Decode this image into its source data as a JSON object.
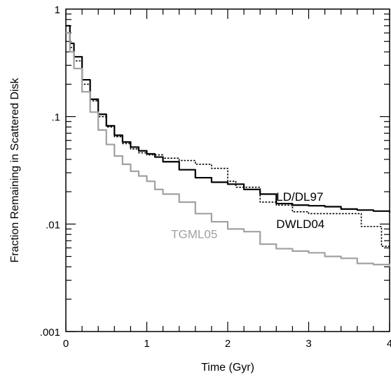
{
  "chart_data": {
    "type": "line",
    "title": "",
    "xlabel": "Time (Gyr)",
    "ylabel": "Fraction Remaining in Scattered Disk",
    "xlim": [
      0,
      4
    ],
    "ylim": [
      0.001,
      1
    ],
    "y_scale": "log",
    "grid": false,
    "x_ticks": [
      {
        "value": 0,
        "label": "0"
      },
      {
        "value": 1,
        "label": "1"
      },
      {
        "value": 2,
        "label": "2"
      },
      {
        "value": 3,
        "label": "3"
      },
      {
        "value": 4,
        "label": "4"
      }
    ],
    "y_ticks": [
      {
        "value": 1,
        "label": "1"
      },
      {
        "value": 0.1,
        "label": ".1"
      },
      {
        "value": 0.01,
        "label": ".01"
      },
      {
        "value": 0.001,
        "label": ".001"
      }
    ],
    "series": [
      {
        "name": "LD/DL97",
        "color": "#000000",
        "style": "solid",
        "x": [
          0,
          0.05,
          0.1,
          0.2,
          0.3,
          0.4,
          0.5,
          0.6,
          0.7,
          0.8,
          0.9,
          1.0,
          1.1,
          1.2,
          1.4,
          1.6,
          1.8,
          2.0,
          2.2,
          2.4,
          2.6,
          2.8,
          3.0,
          3.2,
          3.4,
          3.6,
          3.8,
          4.0
        ],
        "y": [
          0.7,
          0.48,
          0.36,
          0.22,
          0.145,
          0.105,
          0.082,
          0.067,
          0.058,
          0.052,
          0.048,
          0.045,
          0.042,
          0.038,
          0.032,
          0.027,
          0.0245,
          0.0235,
          0.021,
          0.019,
          0.0155,
          0.015,
          0.0148,
          0.0145,
          0.0138,
          0.0135,
          0.0132,
          0.0128
        ]
      },
      {
        "name": "DWLD04",
        "color": "#000000",
        "style": "dotted",
        "x": [
          0,
          0.05,
          0.1,
          0.2,
          0.3,
          0.4,
          0.5,
          0.6,
          0.7,
          0.8,
          0.9,
          1.0,
          1.2,
          1.4,
          1.6,
          1.8,
          2.0,
          2.1,
          2.2,
          2.4,
          2.6,
          2.8,
          3.0,
          3.2,
          3.4,
          3.6,
          3.65,
          3.8,
          3.9,
          4.0
        ],
        "y": [
          0.6,
          0.44,
          0.33,
          0.2,
          0.14,
          0.1,
          0.08,
          0.065,
          0.056,
          0.05,
          0.046,
          0.044,
          0.041,
          0.039,
          0.036,
          0.033,
          0.025,
          0.022,
          0.022,
          0.016,
          0.015,
          0.013,
          0.0125,
          0.0125,
          0.0125,
          0.0125,
          0.0095,
          0.0095,
          0.0062,
          0.0062
        ]
      },
      {
        "name": "TGML05",
        "color": "#a0a0a0",
        "style": "solid",
        "x": [
          0,
          0.05,
          0.1,
          0.2,
          0.3,
          0.4,
          0.5,
          0.6,
          0.7,
          0.8,
          0.9,
          1.0,
          1.1,
          1.2,
          1.4,
          1.6,
          1.8,
          2.0,
          2.2,
          2.4,
          2.6,
          2.8,
          3.0,
          3.2,
          3.4,
          3.6,
          3.8,
          4.0
        ],
        "y": [
          0.6,
          0.4,
          0.28,
          0.17,
          0.11,
          0.075,
          0.055,
          0.043,
          0.036,
          0.031,
          0.028,
          0.025,
          0.021,
          0.019,
          0.016,
          0.0125,
          0.0105,
          0.009,
          0.0085,
          0.0065,
          0.0059,
          0.0056,
          0.0054,
          0.005,
          0.0048,
          0.0043,
          0.0042,
          0.004
        ]
      }
    ],
    "annotations": [
      {
        "text": "LD/DL97",
        "x": 2.6,
        "y": 0.0165,
        "color": "#000000"
      },
      {
        "text": "DWLD04",
        "x": 2.6,
        "y": 0.0092,
        "color": "#000000"
      },
      {
        "text": "TGML05",
        "x": 1.3,
        "y": 0.0074,
        "color": "#a0a0a0"
      }
    ]
  }
}
